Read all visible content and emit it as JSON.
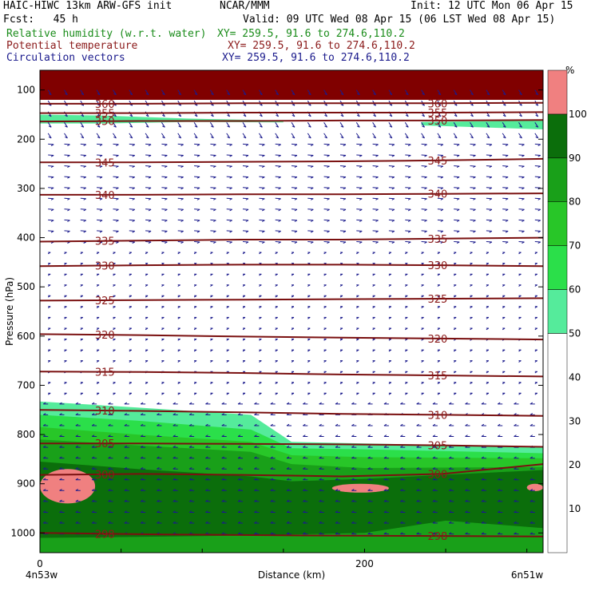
{
  "header": {
    "line1_left": "HAIC-HIWC 13km ARW-GFS init",
    "line1_mid": "NCAR/MMM",
    "line1_right": "Init: 12 UTC Mon 06 Apr 15",
    "fcst": "Fcst:   45 h",
    "valid": "Valid: 09 UTC Wed 08 Apr 15 (06 LST Wed 08 Apr 15)",
    "fields": [
      {
        "name": "Relative humidity (w.r.t. water)",
        "xy": "XY= 259.5, 91.6 to 274.6,110.2",
        "color": "#1a8c1a"
      },
      {
        "name": "Potential temperature",
        "xy": "XY= 259.5, 91.6 to 274.6,110.2",
        "color": "#8b1a1a"
      },
      {
        "name": "Circulation vectors",
        "xy": "XY= 259.5, 91.6 to 274.6,110.2",
        "color": "#1a1a8c"
      }
    ]
  },
  "chart_data": {
    "type": "cross-section",
    "xlabel": "Distance (km)",
    "ylabel": "Pressure (hPa)",
    "x_ticks": [
      0,
      200
    ],
    "x_range": [
      0,
      310
    ],
    "y_ticks": [
      100,
      200,
      300,
      400,
      500,
      600,
      700,
      800,
      900,
      1000
    ],
    "y_range": [
      1040,
      60
    ],
    "left_end_label": "4n53w",
    "right_end_label": "6n51w",
    "colorbar": {
      "unit": "%",
      "labels": [
        10,
        20,
        30,
        40,
        50,
        60,
        70,
        80,
        90,
        100
      ],
      "bins": [
        {
          "min": 0,
          "max": 50,
          "color": "#ffffff"
        },
        {
          "min": 50,
          "max": 60,
          "color": "#55eb9b"
        },
        {
          "min": 60,
          "max": 70,
          "color": "#2bdf4a"
        },
        {
          "min": 70,
          "max": 80,
          "color": "#28c628"
        },
        {
          "min": 80,
          "max": 90,
          "color": "#19a019"
        },
        {
          "min": 90,
          "max": 100,
          "color": "#0b6e0b"
        },
        {
          "min": 100,
          "max": 110,
          "color": "#f08080"
        }
      ]
    },
    "colors": {
      "theta": "#7a1010",
      "vector": "#1a1a8c",
      "top_band": "#800000"
    },
    "theta_contours": [
      {
        "value": 298,
        "pressure": [
          1000,
          1003,
          1005,
          1006,
          1007
        ]
      },
      {
        "value": 300,
        "pressure": [
          882,
          880,
          882,
          885,
          880,
          860
        ]
      },
      {
        "value": 305,
        "pressure": [
          818,
          818,
          819,
          820,
          822,
          825
        ]
      },
      {
        "value": 310,
        "pressure": [
          750,
          752,
          755,
          758,
          760,
          762
        ]
      },
      {
        "value": 315,
        "pressure": [
          672,
          673,
          675,
          678,
          680,
          682
        ]
      },
      {
        "value": 320,
        "pressure": [
          596,
          598,
          601,
          603,
          605,
          607
        ]
      },
      {
        "value": 325,
        "pressure": [
          528,
          527,
          526,
          525,
          524,
          523
        ]
      },
      {
        "value": 330,
        "pressure": [
          458,
          456,
          455,
          455,
          456,
          458
        ]
      },
      {
        "value": 335,
        "pressure": [
          408,
          406,
          404,
          404,
          402,
          400
        ]
      },
      {
        "value": 340,
        "pressure": [
          313,
          313,
          312,
          312,
          311,
          310
        ]
      },
      {
        "value": 345,
        "pressure": [
          247,
          247,
          246,
          245,
          243,
          240
        ]
      },
      {
        "value": 350,
        "pressure": [
          164,
          163,
          163,
          162,
          162,
          161
        ]
      },
      {
        "value": 355,
        "pressure": [
          147,
          147,
          146,
          146,
          146,
          145
        ]
      },
      {
        "value": 360,
        "pressure": [
          128,
          128,
          127,
          127,
          127,
          126
        ]
      }
    ],
    "theta_label_x": [
      40,
      245
    ],
    "rh_regions": [
      {
        "bin": 50,
        "top": [
          [
            0,
            733
          ],
          [
            60,
            745
          ],
          [
            130,
            760
          ],
          [
            155,
            815
          ],
          [
            200,
            818
          ],
          [
            310,
            825
          ]
        ]
      },
      {
        "bin": 60,
        "top": [
          [
            0,
            760
          ],
          [
            60,
            772
          ],
          [
            130,
            790
          ],
          [
            155,
            828
          ],
          [
            200,
            830
          ],
          [
            310,
            838
          ]
        ]
      },
      {
        "bin": 70,
        "top": [
          [
            0,
            785
          ],
          [
            60,
            800
          ],
          [
            130,
            815
          ],
          [
            155,
            842
          ],
          [
            200,
            846
          ],
          [
            310,
            848
          ]
        ]
      },
      {
        "bin": 80,
        "top": [
          [
            0,
            810
          ],
          [
            60,
            822
          ],
          [
            130,
            835
          ],
          [
            155,
            860
          ],
          [
            200,
            868
          ],
          [
            310,
            866
          ]
        ]
      },
      {
        "bin": 90,
        "top": [
          [
            0,
            855
          ],
          [
            60,
            870
          ],
          [
            130,
            885
          ],
          [
            155,
            895
          ],
          [
            200,
            890
          ],
          [
            310,
            872
          ]
        ]
      },
      {
        "bin": 80,
        "top": [
          [
            0,
            1010
          ],
          [
            60,
            1008
          ],
          [
            130,
            1005
          ],
          [
            200,
            1000
          ],
          [
            250,
            975
          ],
          [
            310,
            990
          ]
        ]
      },
      {
        "bin": 50,
        "top": [
          [
            0,
            150
          ],
          [
            40,
            152
          ],
          [
            90,
            158
          ],
          [
            150,
            162
          ]
        ],
        "bottom": [
          [
            0,
            168
          ],
          [
            40,
            168
          ],
          [
            90,
            165
          ],
          [
            150,
            166
          ]
        ]
      },
      {
        "bin": 50,
        "top": [
          [
            235,
            165
          ],
          [
            310,
            162
          ]
        ],
        "bottom": [
          [
            235,
            172
          ],
          [
            310,
            180
          ]
        ]
      }
    ],
    "rh_blobs": [
      {
        "bin": 100,
        "x": [
          0,
          34
        ],
        "p": [
          870,
          940
        ]
      },
      {
        "bin": 100,
        "x": [
          180,
          215
        ],
        "p": [
          900,
          918
        ]
      },
      {
        "bin": 100,
        "x": [
          300,
          310
        ],
        "p": [
          900,
          915
        ]
      }
    ]
  }
}
